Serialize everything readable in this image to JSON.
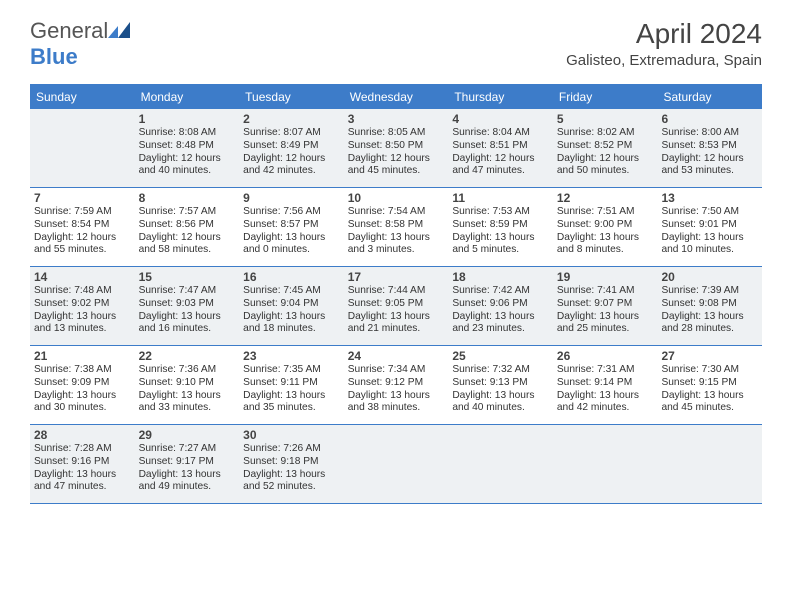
{
  "logo": {
    "word1": "General",
    "word2": "Blue"
  },
  "title": "April 2024",
  "location": "Galisteo, Extremadura, Spain",
  "colors": {
    "accent": "#3d7cc9",
    "header_text": "#444",
    "body_text": "#333",
    "shade_bg": "#eef1f3",
    "background": "#ffffff"
  },
  "dow": [
    "Sunday",
    "Monday",
    "Tuesday",
    "Wednesday",
    "Thursday",
    "Friday",
    "Saturday"
  ],
  "weeks": [
    [
      {
        "num": "",
        "sunrise": "",
        "sunset": "",
        "daylight": ""
      },
      {
        "num": "1",
        "sunrise": "Sunrise: 8:08 AM",
        "sunset": "Sunset: 8:48 PM",
        "daylight": "Daylight: 12 hours and 40 minutes."
      },
      {
        "num": "2",
        "sunrise": "Sunrise: 8:07 AM",
        "sunset": "Sunset: 8:49 PM",
        "daylight": "Daylight: 12 hours and 42 minutes."
      },
      {
        "num": "3",
        "sunrise": "Sunrise: 8:05 AM",
        "sunset": "Sunset: 8:50 PM",
        "daylight": "Daylight: 12 hours and 45 minutes."
      },
      {
        "num": "4",
        "sunrise": "Sunrise: 8:04 AM",
        "sunset": "Sunset: 8:51 PM",
        "daylight": "Daylight: 12 hours and 47 minutes."
      },
      {
        "num": "5",
        "sunrise": "Sunrise: 8:02 AM",
        "sunset": "Sunset: 8:52 PM",
        "daylight": "Daylight: 12 hours and 50 minutes."
      },
      {
        "num": "6",
        "sunrise": "Sunrise: 8:00 AM",
        "sunset": "Sunset: 8:53 PM",
        "daylight": "Daylight: 12 hours and 53 minutes."
      }
    ],
    [
      {
        "num": "7",
        "sunrise": "Sunrise: 7:59 AM",
        "sunset": "Sunset: 8:54 PM",
        "daylight": "Daylight: 12 hours and 55 minutes."
      },
      {
        "num": "8",
        "sunrise": "Sunrise: 7:57 AM",
        "sunset": "Sunset: 8:56 PM",
        "daylight": "Daylight: 12 hours and 58 minutes."
      },
      {
        "num": "9",
        "sunrise": "Sunrise: 7:56 AM",
        "sunset": "Sunset: 8:57 PM",
        "daylight": "Daylight: 13 hours and 0 minutes."
      },
      {
        "num": "10",
        "sunrise": "Sunrise: 7:54 AM",
        "sunset": "Sunset: 8:58 PM",
        "daylight": "Daylight: 13 hours and 3 minutes."
      },
      {
        "num": "11",
        "sunrise": "Sunrise: 7:53 AM",
        "sunset": "Sunset: 8:59 PM",
        "daylight": "Daylight: 13 hours and 5 minutes."
      },
      {
        "num": "12",
        "sunrise": "Sunrise: 7:51 AM",
        "sunset": "Sunset: 9:00 PM",
        "daylight": "Daylight: 13 hours and 8 minutes."
      },
      {
        "num": "13",
        "sunrise": "Sunrise: 7:50 AM",
        "sunset": "Sunset: 9:01 PM",
        "daylight": "Daylight: 13 hours and 10 minutes."
      }
    ],
    [
      {
        "num": "14",
        "sunrise": "Sunrise: 7:48 AM",
        "sunset": "Sunset: 9:02 PM",
        "daylight": "Daylight: 13 hours and 13 minutes."
      },
      {
        "num": "15",
        "sunrise": "Sunrise: 7:47 AM",
        "sunset": "Sunset: 9:03 PM",
        "daylight": "Daylight: 13 hours and 16 minutes."
      },
      {
        "num": "16",
        "sunrise": "Sunrise: 7:45 AM",
        "sunset": "Sunset: 9:04 PM",
        "daylight": "Daylight: 13 hours and 18 minutes."
      },
      {
        "num": "17",
        "sunrise": "Sunrise: 7:44 AM",
        "sunset": "Sunset: 9:05 PM",
        "daylight": "Daylight: 13 hours and 21 minutes."
      },
      {
        "num": "18",
        "sunrise": "Sunrise: 7:42 AM",
        "sunset": "Sunset: 9:06 PM",
        "daylight": "Daylight: 13 hours and 23 minutes."
      },
      {
        "num": "19",
        "sunrise": "Sunrise: 7:41 AM",
        "sunset": "Sunset: 9:07 PM",
        "daylight": "Daylight: 13 hours and 25 minutes."
      },
      {
        "num": "20",
        "sunrise": "Sunrise: 7:39 AM",
        "sunset": "Sunset: 9:08 PM",
        "daylight": "Daylight: 13 hours and 28 minutes."
      }
    ],
    [
      {
        "num": "21",
        "sunrise": "Sunrise: 7:38 AM",
        "sunset": "Sunset: 9:09 PM",
        "daylight": "Daylight: 13 hours and 30 minutes."
      },
      {
        "num": "22",
        "sunrise": "Sunrise: 7:36 AM",
        "sunset": "Sunset: 9:10 PM",
        "daylight": "Daylight: 13 hours and 33 minutes."
      },
      {
        "num": "23",
        "sunrise": "Sunrise: 7:35 AM",
        "sunset": "Sunset: 9:11 PM",
        "daylight": "Daylight: 13 hours and 35 minutes."
      },
      {
        "num": "24",
        "sunrise": "Sunrise: 7:34 AM",
        "sunset": "Sunset: 9:12 PM",
        "daylight": "Daylight: 13 hours and 38 minutes."
      },
      {
        "num": "25",
        "sunrise": "Sunrise: 7:32 AM",
        "sunset": "Sunset: 9:13 PM",
        "daylight": "Daylight: 13 hours and 40 minutes."
      },
      {
        "num": "26",
        "sunrise": "Sunrise: 7:31 AM",
        "sunset": "Sunset: 9:14 PM",
        "daylight": "Daylight: 13 hours and 42 minutes."
      },
      {
        "num": "27",
        "sunrise": "Sunrise: 7:30 AM",
        "sunset": "Sunset: 9:15 PM",
        "daylight": "Daylight: 13 hours and 45 minutes."
      }
    ],
    [
      {
        "num": "28",
        "sunrise": "Sunrise: 7:28 AM",
        "sunset": "Sunset: 9:16 PM",
        "daylight": "Daylight: 13 hours and 47 minutes."
      },
      {
        "num": "29",
        "sunrise": "Sunrise: 7:27 AM",
        "sunset": "Sunset: 9:17 PM",
        "daylight": "Daylight: 13 hours and 49 minutes."
      },
      {
        "num": "30",
        "sunrise": "Sunrise: 7:26 AM",
        "sunset": "Sunset: 9:18 PM",
        "daylight": "Daylight: 13 hours and 52 minutes."
      },
      {
        "num": "",
        "sunrise": "",
        "sunset": "",
        "daylight": ""
      },
      {
        "num": "",
        "sunrise": "",
        "sunset": "",
        "daylight": ""
      },
      {
        "num": "",
        "sunrise": "",
        "sunset": "",
        "daylight": ""
      },
      {
        "num": "",
        "sunrise": "",
        "sunset": "",
        "daylight": ""
      }
    ]
  ],
  "shaded_weeks": [
    0,
    2,
    4
  ]
}
